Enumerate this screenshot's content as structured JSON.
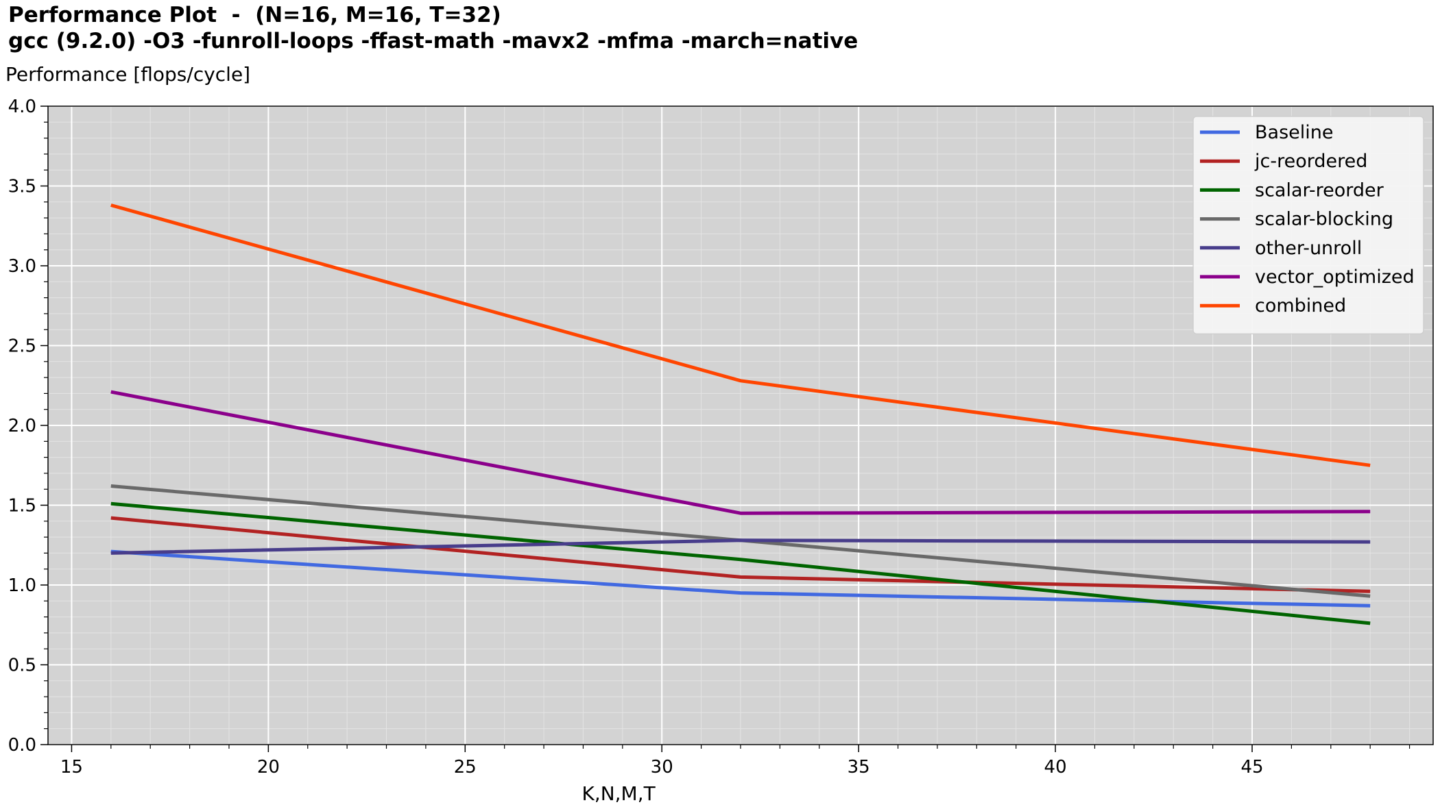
{
  "title_line1": "Performance Plot  -  (N=16, M=16, T=32)",
  "title_line2": "gcc (9.2.0) -O3 -funroll-loops -ffast-math -mavx2 -mfma -march=native",
  "colors": {
    "plot_background": "#d3d3d3",
    "grid_major": "#ffffff"
  },
  "chart_data": {
    "type": "line",
    "title": "Performance Plot  -  (N=16, M=16, T=32)",
    "subtitle": "gcc (9.2.0) -O3 -funroll-loops -ffast-math -mavx2 -mfma -march=native",
    "xlabel": "K,N,M,T",
    "ylabel": "Performance [flops/cycle]",
    "xlim": [
      14.4,
      49.6
    ],
    "ylim": [
      0.0,
      4.0
    ],
    "xticks": [
      "15",
      "20",
      "25",
      "30",
      "35",
      "40",
      "45"
    ],
    "yticks": [
      "0.0",
      "0.5",
      "1.0",
      "1.5",
      "2.0",
      "2.5",
      "3.0",
      "3.5",
      "4.0"
    ],
    "grid": true,
    "legend_position": "top-right",
    "x": [
      16,
      32,
      48
    ],
    "series": [
      {
        "name": "Baseline",
        "color": "#4169e1",
        "values": [
          1.21,
          0.95,
          0.87
        ]
      },
      {
        "name": "jc-reordered",
        "color": "#b22222",
        "values": [
          1.42,
          1.05,
          0.96
        ]
      },
      {
        "name": "scalar-reorder",
        "color": "#006400",
        "values": [
          1.51,
          1.16,
          0.76
        ]
      },
      {
        "name": "scalar-blocking",
        "color": "#696969",
        "values": [
          1.62,
          1.28,
          0.93
        ]
      },
      {
        "name": "other-unroll",
        "color": "#483d8b",
        "values": [
          1.2,
          1.28,
          1.27
        ]
      },
      {
        "name": "vector_optimized",
        "color": "#8b008b",
        "values": [
          2.21,
          1.45,
          1.46
        ]
      },
      {
        "name": "combined",
        "color": "#ff4500",
        "values": [
          3.38,
          2.28,
          1.75
        ]
      }
    ]
  }
}
